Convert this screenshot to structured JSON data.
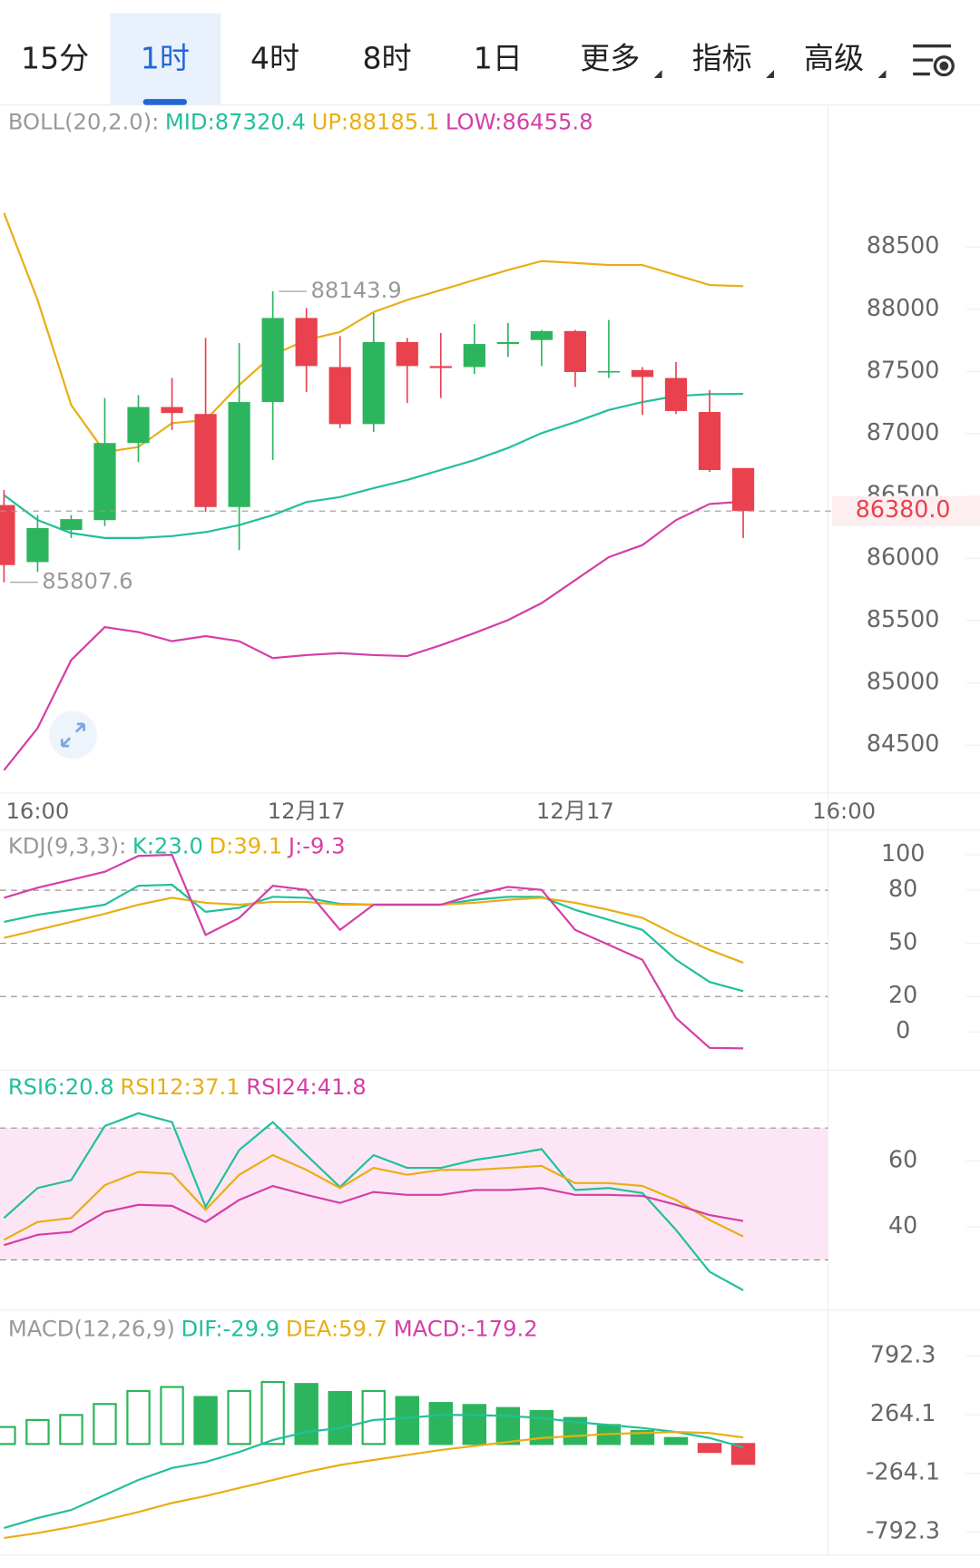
{
  "tabs": [
    "15分",
    "1时",
    "4时",
    "8时",
    "1日",
    "更多",
    "指标",
    "高级"
  ],
  "selected_tab": 1,
  "chart_data": [
    {
      "type": "candlestick",
      "legend_title": "BOLL(20,2.0):",
      "categories": [
        null,
        "16:00",
        null,
        null,
        null,
        null,
        null,
        null,
        null,
        "12月17",
        null,
        null,
        null,
        null,
        null,
        null,
        null,
        "12月17",
        null,
        null,
        null,
        null,
        null,
        null,
        null,
        "16:00"
      ],
      "open": [
        86428,
        85970,
        86227,
        86307,
        86926,
        87215,
        87159,
        86412,
        87255,
        87930,
        87536,
        87078,
        87737,
        87544,
        87536,
        87721,
        87753,
        87825,
        87496,
        87512,
        87448,
        87175,
        86725,
        null,
        null,
        null
      ],
      "high": [
        86548,
        86347,
        86347,
        87287,
        87311,
        87448,
        87769,
        87729,
        88143.9,
        88010,
        87785,
        87970,
        87769,
        87809,
        87882,
        87890,
        87833,
        87833,
        87914,
        87536,
        87576,
        87351,
        86725,
        null,
        null,
        null
      ],
      "low": [
        85807.6,
        85890,
        86163,
        86259,
        86773,
        87030,
        86372,
        86066,
        86789,
        87335,
        87046,
        87014,
        87247,
        87287,
        87480,
        87617,
        87544,
        87376,
        87448,
        87151,
        87159,
        86693,
        86163,
        null,
        null,
        null
      ],
      "close": [
        85946,
        86243,
        86315,
        86926,
        87215,
        87167,
        86412,
        87255,
        87930,
        87544,
        87078,
        87737,
        87544,
        87528,
        87721,
        87737,
        87825,
        87496,
        87504,
        87456,
        87183,
        86709,
        86380.0,
        null,
        null,
        null
      ],
      "up_color": "#2db55d",
      "down_color": "#e9414d",
      "series": [
        {
          "name": "MID",
          "label": "MID:87320.4",
          "color": "#22bf9c",
          "values": [
            86508,
            86307,
            86203,
            86163,
            86163,
            86179,
            86211,
            86267,
            86347,
            86452,
            86492,
            86564,
            86629,
            86709,
            86789,
            86886,
            87006,
            87094,
            87191,
            87255,
            87303,
            87319,
            87320.4,
            null,
            null,
            null
          ]
        },
        {
          "name": "UP",
          "label": "UP:88185.1",
          "color": "#e9ae14",
          "values": [
            88773,
            88074,
            87231,
            86853,
            86894,
            87086,
            87110,
            87392,
            87633,
            87753,
            87817,
            87978,
            88074,
            88154,
            88235,
            88315,
            88387,
            88371,
            88355,
            88355,
            88275,
            88195,
            88185.1,
            null,
            null,
            null
          ]
        },
        {
          "name": "LOW",
          "label": "LOW:86455.8",
          "color": "#d43fa6",
          "values": [
            84299,
            84637,
            85183,
            85448,
            85408,
            85335,
            85376,
            85335,
            85199,
            85223,
            85239,
            85223,
            85215,
            85303,
            85400,
            85504,
            85641,
            85825,
            86010,
            86106,
            86307,
            86436,
            86455.8,
            null,
            null,
            null
          ]
        }
      ],
      "ylim": [
        84140,
        89640
      ],
      "yticks": [
        84500,
        85000,
        85500,
        86000,
        86500,
        87000,
        87500,
        88000,
        88500
      ],
      "high_label": 88143.9,
      "low_label": 85807.6,
      "last_price": {
        "value": 86380.0,
        "label": "86380.0"
      }
    },
    {
      "type": "line",
      "legend_title": "KDJ(9,3,3):",
      "series": [
        {
          "name": "K",
          "label": "K:23.0",
          "color": "#22bf9c",
          "values": [
            62.1,
            66.1,
            68.9,
            71.8,
            82.5,
            83.1,
            67.8,
            70.1,
            76.3,
            75.7,
            72.3,
            71.8,
            71.8,
            71.8,
            74.6,
            76.3,
            76.3,
            68.9,
            63.3,
            57.6,
            40.7,
            28.2,
            23.0
          ]
        },
        {
          "name": "D",
          "label": "D:39.1",
          "color": "#e9ae14",
          "values": [
            53.1,
            57.6,
            62.1,
            66.7,
            71.8,
            75.7,
            72.9,
            71.8,
            73.4,
            73.4,
            71.8,
            71.8,
            71.8,
            71.8,
            72.9,
            74.6,
            75.7,
            72.9,
            68.9,
            64.4,
            54.8,
            46.3,
            39.1
          ]
        },
        {
          "name": "J",
          "label": "J:-9.3",
          "color": "#d43fa6",
          "values": [
            75.7,
            81.4,
            85.9,
            90.4,
            99.4,
            100.0,
            54.8,
            64.4,
            82.5,
            80.2,
            57.6,
            71.8,
            71.8,
            71.8,
            77.4,
            81.9,
            80.2,
            57.6,
            49.2,
            40.7,
            7.9,
            -9.0,
            -9.3
          ]
        }
      ],
      "ylim": [
        -21.5,
        114
      ],
      "yticks": [
        0,
        20,
        50,
        80,
        100
      ],
      "reference_lines": [
        80,
        50,
        20
      ]
    },
    {
      "type": "line",
      "series": [
        {
          "name": "RSI6",
          "label": "RSI6:20.8",
          "color": "#22bf9c",
          "values": [
            42.7,
            51.8,
            54.2,
            70.6,
            74.5,
            71.8,
            46.1,
            63.3,
            71.8,
            61.8,
            52.1,
            61.8,
            57.9,
            57.9,
            60.3,
            61.8,
            63.6,
            51.2,
            51.8,
            50.3,
            39.1,
            26.4,
            20.8
          ]
        },
        {
          "name": "RSI12",
          "label": "RSI12:37.1",
          "color": "#e9ae14",
          "values": [
            36.1,
            41.5,
            42.7,
            52.7,
            56.7,
            56.1,
            45.2,
            55.8,
            61.8,
            57.3,
            51.8,
            57.9,
            55.8,
            57.3,
            57.3,
            57.9,
            58.5,
            53.3,
            53.3,
            52.4,
            48.2,
            42.1,
            37.1
          ]
        },
        {
          "name": "RSI24",
          "label": "RSI24:41.8",
          "color": "#d43fa6",
          "values": [
            34.5,
            37.6,
            38.5,
            44.5,
            46.7,
            46.4,
            41.5,
            48.2,
            52.4,
            49.7,
            47.3,
            50.6,
            49.7,
            49.7,
            51.2,
            51.2,
            51.8,
            49.7,
            49.7,
            49.4,
            46.7,
            43.6,
            41.8
          ]
        }
      ],
      "ylim": [
        14.8,
        87.6
      ],
      "yticks": [
        40,
        60
      ],
      "band": [
        30,
        70
      ],
      "band_color": "#fce6f5",
      "reference_lines": [
        70,
        30
      ]
    },
    {
      "type": "macd",
      "legend_title": "MACD(12,26,9)",
      "up_color": "#2db55d",
      "down_color": "#e9414d",
      "series": [
        {
          "name": "DIF",
          "label": "DIF:-29.9",
          "color": "#22bf9c",
          "values": [
            -756,
            -666,
            -594,
            -459,
            -324,
            -216,
            -162,
            -72,
            36,
            108,
            144,
            216,
            234,
            261,
            261,
            252,
            234,
            198,
            171,
            144,
            108,
            54,
            -29.9
          ]
        },
        {
          "name": "DEA",
          "label": "DEA:59.7",
          "color": "#e9ae14",
          "values": [
            -846,
            -801,
            -747,
            -684,
            -612,
            -531,
            -468,
            -396,
            -324,
            -252,
            -189,
            -144,
            -99,
            -54,
            -18,
            18,
            54,
            72,
            90,
            99,
            108,
            99,
            59.7
          ]
        },
        {
          "name": "MACD",
          "label": "MACD:-179.2",
          "color": "#d43fa6",
          "kind": "bar",
          "values": [
            153,
            216,
            261,
            360,
            477,
            513,
            423,
            477,
            558,
            540,
            468,
            477,
            423,
            369,
            351,
            324,
            297,
            234,
            171,
            117,
            54,
            -72,
            -179.2
          ]
        }
      ],
      "ylim": [
        -999,
        1206
      ],
      "yticks": [
        -792.3,
        -264.1,
        264.1,
        792.3
      ]
    }
  ]
}
